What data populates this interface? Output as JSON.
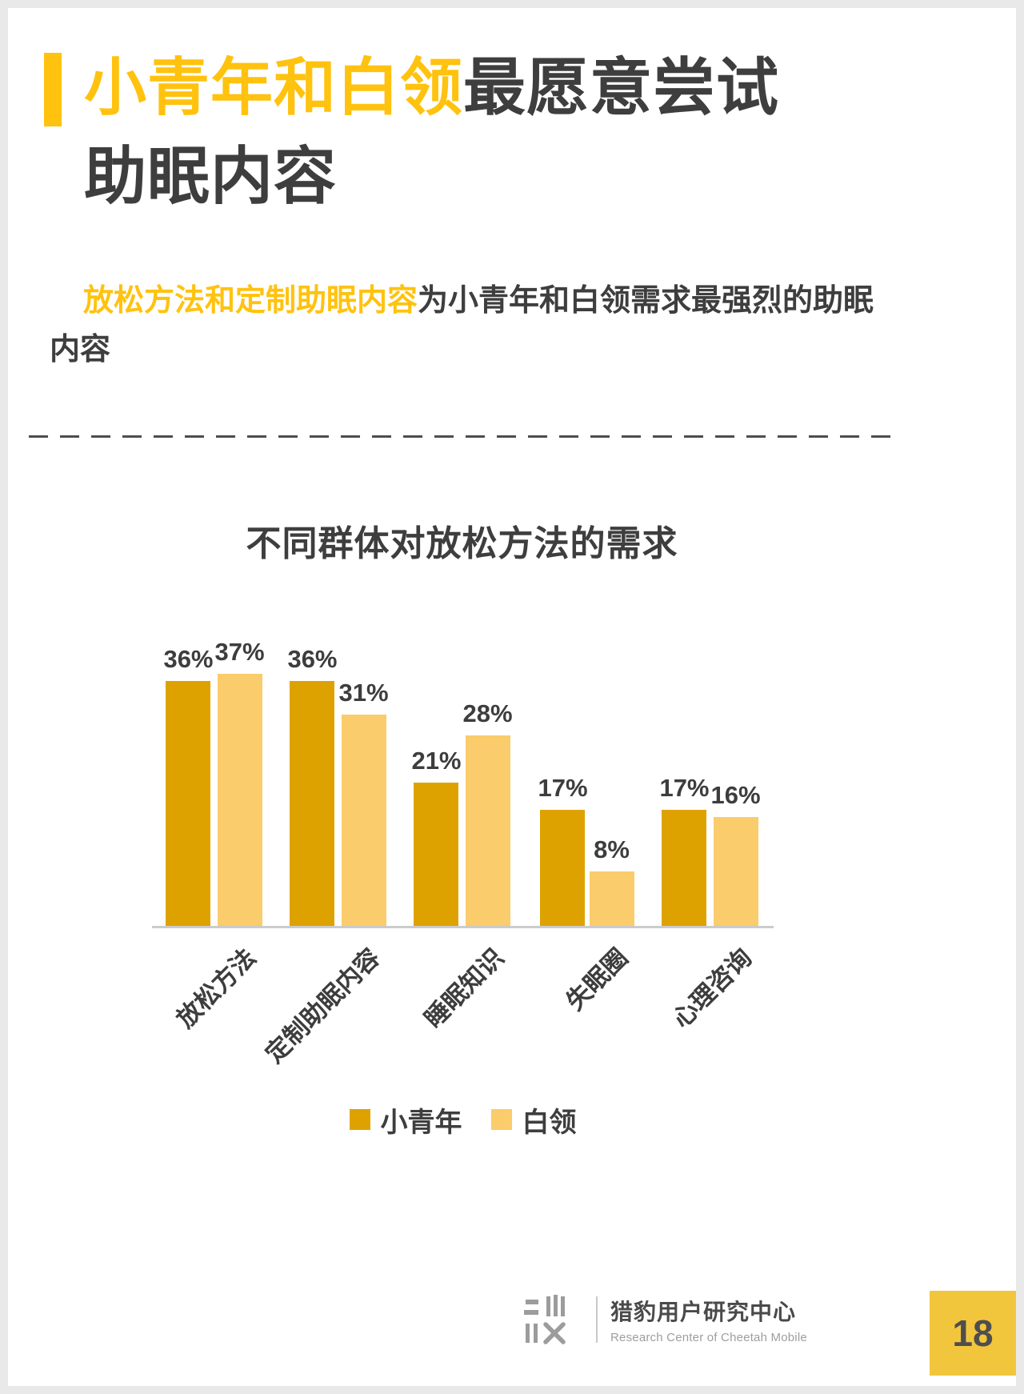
{
  "title": {
    "highlight": "小青年和白领",
    "rest": "最愿意尝试",
    "line2": "助眠内容"
  },
  "subtitle": {
    "highlight": "放松方法和定制助眠内容",
    "rest": "为小青年和白领需求最强烈的助眠内容"
  },
  "chart_data": {
    "type": "bar",
    "title": "不同群体对放松方法的需求",
    "categories": [
      "放松方法",
      "定制助眠内容",
      "睡眠知识",
      "失眠圈",
      "心理咨询"
    ],
    "series": [
      {
        "name": "小青年",
        "color": "#DDA200",
        "values": [
          36,
          36,
          21,
          17,
          17
        ]
      },
      {
        "name": "白领",
        "color": "#FACC6B",
        "values": [
          37,
          31,
          28,
          8,
          16
        ]
      }
    ],
    "value_suffix": "%",
    "ylim": [
      0,
      40
    ],
    "grid": false,
    "legend_position": "bottom",
    "x_label_rotation_deg": 45
  },
  "footer": {
    "org_cn": "猎豹用户研究中心",
    "org_en": "Research Center of Cheetah Mobile",
    "page_number": "18"
  },
  "colors": {
    "accent_yellow": "#FFC20E",
    "dark_text": "#3E3E3E",
    "badge_yellow": "#F2C63C",
    "axis_line": "#CBCBCB"
  }
}
